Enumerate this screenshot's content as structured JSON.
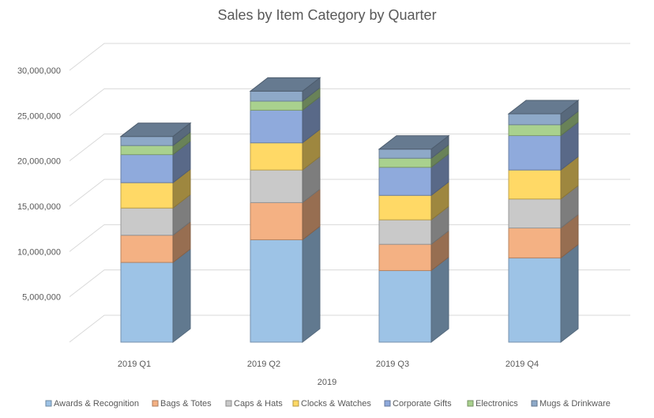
{
  "chart_data": {
    "type": "bar",
    "stacked": true,
    "style_3d": true,
    "title": "Sales by Item Category by Quarter",
    "xlabel": "2019",
    "ylabel": "",
    "ylim": [
      0,
      30000000
    ],
    "yticks": [
      {
        "value": 5000000,
        "label": "5,000,000"
      },
      {
        "value": 10000000,
        "label": "10,000,000"
      },
      {
        "value": 15000000,
        "label": "15,000,000"
      },
      {
        "value": 20000000,
        "label": "20,000,000"
      },
      {
        "value": 25000000,
        "label": "25,000,000"
      },
      {
        "value": 30000000,
        "label": "30,000,000"
      }
    ],
    "grid": true,
    "legend_position": "bottom",
    "categories": [
      "2019 Q1",
      "2019 Q2",
      "2019 Q3",
      "2019 Q4"
    ],
    "series": [
      {
        "name": "Awards & Recognition",
        "color": "#9dc3e6",
        "values": [
          8800000,
          11300000,
          7900000,
          9300000
        ]
      },
      {
        "name": "Bags & Totes",
        "color": "#f4b183",
        "values": [
          3000000,
          4100000,
          2900000,
          3300000
        ]
      },
      {
        "name": "Caps & Hats",
        "color": "#c9c9c9",
        "values": [
          3000000,
          3600000,
          2700000,
          3200000
        ]
      },
      {
        "name": "Clocks & Watches",
        "color": "#ffd966",
        "values": [
          2800000,
          3000000,
          2700000,
          3200000
        ]
      },
      {
        "name": "Corporate Gifts",
        "color": "#8faadc",
        "values": [
          3100000,
          3600000,
          3100000,
          3800000
        ]
      },
      {
        "name": "Electronics",
        "color": "#a9d18e",
        "values": [
          1000000,
          1000000,
          1000000,
          1200000
        ]
      },
      {
        "name": "Mugs & Drinkware",
        "color": "#8ea9c8",
        "values": [
          1000000,
          1100000,
          1000000,
          1200000
        ]
      }
    ]
  }
}
